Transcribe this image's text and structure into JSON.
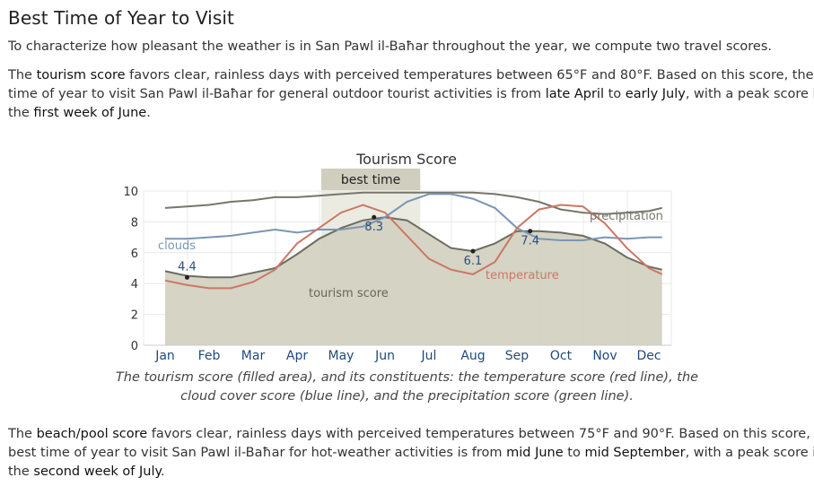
{
  "section": {
    "heading": "Best Time of Year to Visit",
    "intro": "To characterize how pleasant the weather is in San Pawl il-Baħar throughout the year, we compute two travel scores.",
    "tourism": {
      "t1": "The ",
      "score_name": "tourism score",
      "t2": " favors clear, rainless days with perceived temperatures between 65°F and 80°F. Based on this score, the best",
      "t3": "time of year to visit San Pawl il-Baħar for general outdoor tourist activities is from ",
      "start": "late April",
      "t4": " to ",
      "end": "early July",
      "t5": ", with a peak score in",
      "t6": "the ",
      "peak": "first week of June",
      "t7": "."
    },
    "beach": {
      "t1": "The ",
      "score_name": "beach/pool score",
      "t2": " favors clear, rainless days with perceived temperatures between 75°F and 90°F. Based on this score, the",
      "t3": "best time of year to visit San Pawl il-Baħar for hot-weather activities is from ",
      "start": "mid June",
      "t4": " to ",
      "end": "mid September",
      "t5": ", with a peak score in",
      "t6": "the ",
      "peak": "second week of July",
      "t7": "."
    }
  },
  "chart_data": {
    "type": "area",
    "title": "Tourism Score",
    "best_time_label": "best time",
    "best_time_range": [
      "late April",
      "early July"
    ],
    "categories": [
      "Jan",
      "Feb",
      "Mar",
      "Apr",
      "May",
      "Jun",
      "Jul",
      "Aug",
      "Sep",
      "Oct",
      "Nov",
      "Dec"
    ],
    "y_ticks": [
      "0",
      "2",
      "4",
      "6",
      "8",
      "10"
    ],
    "ylim": [
      0,
      10
    ],
    "grid": true,
    "series": [
      {
        "name": "tourism score",
        "style": "filled area",
        "x": [
          1,
          1.5,
          2,
          2.5,
          3,
          3.5,
          4,
          4.5,
          5,
          5.5,
          6,
          6.5,
          7,
          7.5,
          8,
          8.5,
          9,
          9.5,
          10,
          10.5,
          11,
          11.5,
          12,
          12.3
        ],
        "values": [
          4.8,
          4.5,
          4.4,
          4.4,
          4.7,
          5.0,
          5.9,
          6.9,
          7.6,
          8.1,
          8.3,
          8.1,
          7.2,
          6.3,
          6.1,
          6.6,
          7.4,
          7.4,
          7.3,
          7.1,
          6.6,
          5.7,
          5.1,
          4.9
        ]
      },
      {
        "name": "temperature",
        "style": "red line",
        "x": [
          1,
          1.5,
          2,
          2.5,
          3,
          3.5,
          4,
          4.5,
          5,
          5.5,
          6,
          6.5,
          7,
          7.5,
          8,
          8.5,
          9,
          9.5,
          10,
          10.5,
          11,
          11.5,
          12,
          12.3
        ],
        "values": [
          4.2,
          3.9,
          3.7,
          3.7,
          4.1,
          4.9,
          6.6,
          7.6,
          8.6,
          9.1,
          8.6,
          7.1,
          5.6,
          4.9,
          4.6,
          5.4,
          7.6,
          8.8,
          9.1,
          9.0,
          7.9,
          6.3,
          5.0,
          4.6
        ]
      },
      {
        "name": "clouds",
        "style": "blue line",
        "x": [
          1,
          1.5,
          2,
          2.5,
          3,
          3.5,
          4,
          4.5,
          5,
          5.5,
          6,
          6.5,
          7,
          7.5,
          8,
          8.5,
          9,
          9.5,
          10,
          10.5,
          11,
          11.5,
          12,
          12.3
        ],
        "values": [
          6.9,
          6.9,
          7.0,
          7.1,
          7.3,
          7.5,
          7.3,
          7.5,
          7.5,
          7.7,
          8.3,
          9.3,
          9.8,
          9.8,
          9.5,
          8.9,
          7.6,
          6.9,
          6.8,
          6.8,
          7.0,
          6.9,
          7.0,
          7.0
        ]
      },
      {
        "name": "precipitation",
        "style": "green line",
        "x": [
          1,
          1.5,
          2,
          2.5,
          3,
          3.5,
          4,
          4.5,
          5,
          5.5,
          6,
          6.5,
          7,
          7.5,
          8,
          8.5,
          9,
          9.5,
          10,
          10.5,
          11,
          11.5,
          12,
          12.3
        ],
        "values": [
          8.9,
          9.0,
          9.1,
          9.3,
          9.4,
          9.6,
          9.6,
          9.7,
          9.8,
          9.9,
          9.9,
          9.9,
          9.9,
          9.9,
          9.9,
          9.8,
          9.6,
          9.3,
          8.8,
          8.6,
          8.5,
          8.6,
          8.7,
          8.9
        ]
      }
    ],
    "markers": [
      {
        "x": 1.5,
        "y": 4.4,
        "label": "4.4"
      },
      {
        "x": 5.75,
        "y": 8.3,
        "label": "8.3"
      },
      {
        "x": 8.0,
        "y": 6.1,
        "label": "6.1"
      },
      {
        "x": 9.3,
        "y": 7.4,
        "label": "7.4"
      }
    ],
    "annotations": {
      "clouds": "clouds",
      "precipitation": "precipitation",
      "temperature": "temperature",
      "tourism": "tourism score"
    },
    "caption": {
      "t1": "The ",
      "score_name": "tourism score",
      "t2": " (filled area), and its constituents: the temperature score (red line), the",
      "line2": "cloud cover score (blue line), and the precipitation score (green line)."
    },
    "colors": {
      "area_fill": "#d3d2c2",
      "area_line": "#6d6d60",
      "temperature": "#cc7766",
      "clouds": "#7a96b4",
      "precipitation": "#74776a",
      "best_band": "#e6e6da",
      "best_label_bg": "#cfcebf",
      "grid": "#e8e8e8",
      "month_label": "#1f4a7a",
      "marker_label": "#2d4f7e"
    }
  }
}
